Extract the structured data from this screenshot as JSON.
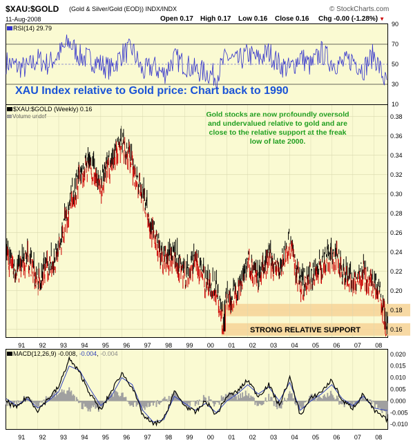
{
  "header": {
    "symbol": "$XAU:$GOLD",
    "description": "(Gold & Silver/Gold (EOD)) INDX/INDX",
    "watermark": "© StockCharts.com",
    "date": "11-Aug-2008",
    "open": "Open 0.17",
    "high": "High 0.17",
    "low": "Low 0.16",
    "close": "Close 0.16",
    "chg": "Chg -0.00 (-1.28%)",
    "chg_arrow": "▼"
  },
  "rsi": {
    "label": "RSI(14) 29.79",
    "ticks": [
      "90",
      "70",
      "50",
      "30",
      "10"
    ],
    "title": "XAU Index relative to Gold price: Chart back to 1990"
  },
  "main": {
    "legend1": "$XAU:$GOLD (Weekly) 0.16",
    "legend2": "Volume undef",
    "annotation_lines": [
      "Gold stocks are now profoundly oversold",
      "and undervalued relative to gold and are",
      "close to the relative support at the freak",
      "low of late 2000."
    ],
    "support_label": "STRONG RELATIVE SUPPORT",
    "price_ticks": [
      "0.38",
      "0.36",
      "0.34",
      "0.32",
      "0.30",
      "0.28",
      "0.26",
      "0.24",
      "0.22",
      "0.20",
      "0.18",
      "0.16"
    ],
    "support_ticks": [
      "0.18",
      "0.16"
    ],
    "year_ticks": [
      "91",
      "92",
      "93",
      "94",
      "95",
      "96",
      "97",
      "98",
      "99",
      "00",
      "01",
      "02",
      "03",
      "04",
      "05",
      "06",
      "07",
      "08"
    ]
  },
  "macd": {
    "label": "MACD(12,26,9)",
    "v1": "-0.008",
    "v2": "-0.004",
    "v3": "-0.004",
    "ticks": [
      "0.020",
      "0.015",
      "0.010",
      "0.005",
      "0.000",
      "-0.005",
      "-0.010"
    ]
  },
  "colors": {
    "panel_bg": "#fafad2",
    "rsi_line": "#3333cc",
    "title_blue": "#1a53d6",
    "annotation_green": "#1f9e1f",
    "support_band": "#f6d59a",
    "macd_line": "#000000",
    "signal_line": "#3344bb",
    "histogram": "#a0a0a0",
    "up_bar": "#000000",
    "down_bar": "#cc0000"
  },
  "chart_data": [
    {
      "type": "line",
      "title": "RSI(14) 29.79",
      "ylim": [
        10,
        90
      ],
      "x": [
        1990.5,
        1991,
        1991.5,
        1992,
        1992.5,
        1993,
        1993.5,
        1994,
        1994.5,
        1995,
        1995.5,
        1996,
        1996.5,
        1997,
        1997.5,
        1998,
        1998.5,
        1999,
        1999.5,
        2000,
        2000.5,
        2001,
        2001.5,
        2002,
        2002.5,
        2003,
        2003.5,
        2004,
        2004.5,
        2005,
        2005.5,
        2006,
        2006.5,
        2007,
        2007.5,
        2008,
        2008.6
      ],
      "series": [
        {
          "values": [
            52,
            48,
            46,
            55,
            50,
            60,
            72,
            58,
            55,
            50,
            45,
            60,
            65,
            42,
            48,
            40,
            56,
            50,
            44,
            42,
            38,
            58,
            52,
            60,
            55,
            62,
            50,
            45,
            58,
            48,
            62,
            52,
            50,
            55,
            45,
            60,
            30
          ]
        }
      ],
      "reference_lines": [
        70,
        50,
        30
      ]
    },
    {
      "type": "line",
      "title": "$XAU:$GOLD (Weekly) 0.16",
      "xlim": [
        1990.5,
        2008.65
      ],
      "ylim": [
        0.152,
        0.392
      ],
      "x": [
        1990.5,
        1991,
        1991.5,
        1992,
        1992.5,
        1993,
        1993.3,
        1993.7,
        1994,
        1994.5,
        1995,
        1995.5,
        1996,
        1996.5,
        1997,
        1997.5,
        1998,
        1998.5,
        1999,
        1999.5,
        2000,
        2000.5,
        2000.85,
        2001,
        2001.5,
        2002,
        2002.5,
        2003,
        2003.5,
        2004,
        2004.5,
        2005,
        2005.5,
        2006,
        2006.5,
        2007,
        2007.5,
        2008,
        2008.3,
        2008.6
      ],
      "series": [
        {
          "values": [
            0.24,
            0.22,
            0.235,
            0.21,
            0.225,
            0.24,
            0.275,
            0.3,
            0.32,
            0.33,
            0.31,
            0.335,
            0.355,
            0.33,
            0.3,
            0.26,
            0.23,
            0.24,
            0.215,
            0.23,
            0.21,
            0.205,
            0.165,
            0.19,
            0.2,
            0.23,
            0.21,
            0.235,
            0.22,
            0.25,
            0.205,
            0.215,
            0.225,
            0.24,
            0.22,
            0.21,
            0.22,
            0.205,
            0.2,
            0.16
          ]
        }
      ],
      "support_bands": [
        0.18,
        0.16
      ]
    },
    {
      "type": "line",
      "title": "MACD(12,26,9)",
      "ylim": [
        -0.012,
        0.022
      ],
      "x": [
        1990.5,
        1991,
        1991.5,
        1992,
        1992.5,
        1993,
        1993.5,
        1994,
        1994.5,
        1995,
        1995.5,
        1996,
        1996.5,
        1997,
        1997.5,
        1998,
        1998.5,
        1999,
        1999.5,
        2000,
        2000.5,
        2001,
        2001.5,
        2002,
        2002.5,
        2003,
        2003.5,
        2004,
        2004.5,
        2005,
        2005.5,
        2006,
        2006.5,
        2007,
        2007.5,
        2008,
        2008.6
      ],
      "series": [
        {
          "values": [
            0.0,
            -0.003,
            0.002,
            -0.004,
            0.001,
            0.006,
            0.018,
            0.012,
            0.003,
            -0.004,
            0.004,
            0.012,
            0.006,
            -0.006,
            -0.01,
            -0.008,
            0.004,
            -0.002,
            -0.005,
            0.0,
            -0.006,
            0.002,
            0.004,
            0.009,
            0.002,
            0.007,
            -0.002,
            0.01,
            -0.006,
            0.001,
            0.004,
            0.009,
            0.0,
            -0.003,
            0.003,
            -0.004,
            -0.008
          ]
        },
        {
          "values": [
            0.001,
            -0.002,
            0.001,
            -0.003,
            0.0,
            0.004,
            0.015,
            0.013,
            0.005,
            -0.002,
            0.002,
            0.01,
            0.007,
            -0.004,
            -0.009,
            -0.008,
            0.002,
            -0.001,
            -0.004,
            -0.001,
            -0.005,
            0.0,
            0.003,
            0.007,
            0.003,
            0.006,
            0.0,
            0.008,
            -0.004,
            0.0,
            0.003,
            0.007,
            0.001,
            -0.002,
            0.002,
            -0.003,
            -0.004
          ]
        }
      ]
    }
  ]
}
